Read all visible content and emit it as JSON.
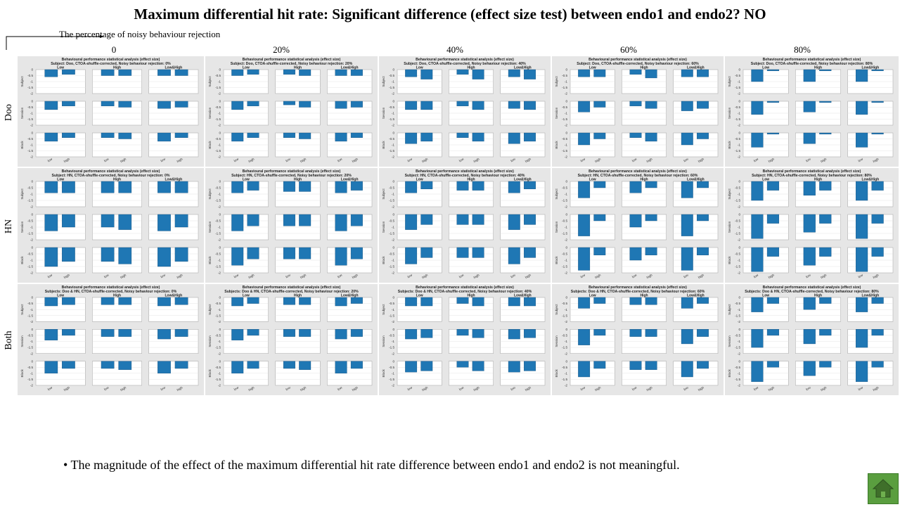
{
  "title": "Maximum differential hit rate: Significant difference (effect size test) between endo1 and endo2? NO",
  "axis_label": "The percentage of noisy  behaviour rejection",
  "columns": [
    "0",
    "20%",
    "40%",
    "60%",
    "80%"
  ],
  "rows": [
    "Doo",
    "HN",
    "Both"
  ],
  "bullet": "The magnitude  of  the  effect  of  the  maximum  differential  hit  rate  difference  between  endo1  and  endo2  is  not  meaningful.",
  "home_icon": "home-icon",
  "chart_data": {
    "type": "bar",
    "panel_title": "Behavioural performance statistical analysis (effect size)",
    "panel_subtitles": [
      [
        "Subject: Doo, CTOA-shuffle-corrected, Noisy behaviour rejection: 0%",
        "Subject: Doo, CTOA-shuffle-corrected, Noisy behaviour rejection: 20%",
        "Subject: Doo, CTOA-shuffle-corrected, Noisy behaviour rejection: 40%",
        "Subject: Doo, CTOA-shuffle-corrected, Noisy behaviour rejection: 60%",
        "Subject: Doo, CTOA-shuffle-corrected, Noisy behaviour rejection: 80%"
      ],
      [
        "Subject: HN, CTOA-shuffle-corrected, Noisy behaviour rejection: 0%",
        "Subject: HN, CTOA-shuffle-corrected, Noisy behaviour rejection: 20%",
        "Subject: HN, CTOA-shuffle-corrected, Noisy behaviour rejection: 40%",
        "Subject: HN, CTOA-shuffle-corrected, Noisy behaviour rejection: 60%",
        "Subject: HN, CTOA-shuffle-corrected, Noisy behaviour rejection: 80%"
      ],
      [
        "Subjects: Doo & HN, CTOA-shuffle-corrected, Noisy behaviour rejection: 0%",
        "Subjects: Doo & HN, CTOA-shuffle-corrected, Noisy behaviour rejection: 20%",
        "Subjects: Doo & HN, CTOA-shuffle-corrected, Noisy behaviour rejection: 40%",
        "Subjects: Doo & HN, CTOA-shuffle-corrected, Noisy behaviour rejection: 60%",
        "Subjects: Doo & HN, CTOA-shuffle-corrected, Noisy behaviour rejection: 80%"
      ]
    ],
    "subplot_columns": [
      "Low",
      "High",
      "Low&High"
    ],
    "subplot_rows": [
      "Subject",
      "Session",
      "Block"
    ],
    "categories": [
      "low",
      "high"
    ],
    "yticks": [
      "0",
      "-0.5",
      "-1",
      "-1.5",
      "-2"
    ],
    "ylim": [
      -2,
      0
    ],
    "bar_color": "#1f77b4",
    "values": [
      [
        [
          [
            [
              -0.6,
              -0.4
            ],
            [
              -0.5,
              -0.5
            ],
            [
              -0.5,
              -0.5
            ]
          ],
          [
            [
              -0.7,
              -0.4
            ],
            [
              -0.4,
              -0.5
            ],
            [
              -0.6,
              -0.5
            ]
          ],
          [
            [
              -0.7,
              -0.4
            ],
            [
              -0.4,
              -0.5
            ],
            [
              -0.7,
              -0.4
            ]
          ]
        ],
        [
          [
            [
              -0.5,
              -0.4
            ],
            [
              -0.4,
              -0.5
            ],
            [
              -0.5,
              -0.5
            ]
          ],
          [
            [
              -0.7,
              -0.4
            ],
            [
              -0.3,
              -0.5
            ],
            [
              -0.6,
              -0.5
            ]
          ],
          [
            [
              -0.7,
              -0.4
            ],
            [
              -0.4,
              -0.5
            ],
            [
              -0.7,
              -0.4
            ]
          ]
        ],
        [
          [
            [
              -0.6,
              -0.8
            ],
            [
              -0.4,
              -0.8
            ],
            [
              -0.6,
              -0.8
            ]
          ],
          [
            [
              -0.7,
              -0.7
            ],
            [
              -0.4,
              -0.7
            ],
            [
              -0.6,
              -0.7
            ]
          ],
          [
            [
              -0.9,
              -0.7
            ],
            [
              -0.4,
              -0.7
            ],
            [
              -0.9,
              -0.7
            ]
          ]
        ],
        [
          [
            [
              -0.6,
              -0.6
            ],
            [
              -0.4,
              -0.7
            ],
            [
              -0.6,
              -0.6
            ]
          ],
          [
            [
              -0.9,
              -0.5
            ],
            [
              -0.4,
              -0.6
            ],
            [
              -0.8,
              -0.6
            ]
          ],
          [
            [
              -1.0,
              -0.5
            ],
            [
              -0.4,
              -0.7
            ],
            [
              -1.0,
              -0.5
            ]
          ]
        ],
        [
          [
            [
              -1.0,
              -0.1
            ],
            [
              -1.0,
              -0.1
            ],
            [
              -1.0,
              -0.1
            ]
          ],
          [
            [
              -1.1,
              -0.1
            ],
            [
              -0.9,
              -0.1
            ],
            [
              -1.1,
              -0.1
            ]
          ],
          [
            [
              -1.2,
              -0.1
            ],
            [
              -0.9,
              -0.1
            ],
            [
              -1.2,
              -0.1
            ]
          ]
        ]
      ],
      [
        [
          [
            [
              -0.9,
              -0.9
            ],
            [
              -0.9,
              -0.9
            ],
            [
              -0.9,
              -0.9
            ]
          ],
          [
            [
              -1.3,
              -1.0
            ],
            [
              -1.0,
              -1.2
            ],
            [
              -1.3,
              -1.0
            ]
          ],
          [
            [
              -1.5,
              -1.1
            ],
            [
              -1.1,
              -1.3
            ],
            [
              -1.5,
              -1.1
            ]
          ]
        ],
        [
          [
            [
              -0.9,
              -0.7
            ],
            [
              -0.8,
              -0.8
            ],
            [
              -0.9,
              -0.7
            ]
          ],
          [
            [
              -1.3,
              -0.9
            ],
            [
              -0.9,
              -0.9
            ],
            [
              -1.3,
              -0.9
            ]
          ],
          [
            [
              -1.4,
              -0.9
            ],
            [
              -0.9,
              -0.9
            ],
            [
              -1.4,
              -0.9
            ]
          ]
        ],
        [
          [
            [
              -0.9,
              -0.6
            ],
            [
              -0.7,
              -0.7
            ],
            [
              -0.9,
              -0.6
            ]
          ],
          [
            [
              -1.2,
              -0.8
            ],
            [
              -0.8,
              -0.8
            ],
            [
              -1.2,
              -0.8
            ]
          ],
          [
            [
              -1.3,
              -0.8
            ],
            [
              -0.8,
              -0.8
            ],
            [
              -1.3,
              -0.8
            ]
          ]
        ],
        [
          [
            [
              -1.3,
              -0.5
            ],
            [
              -0.9,
              -0.5
            ],
            [
              -1.3,
              -0.5
            ]
          ],
          [
            [
              -1.7,
              -0.5
            ],
            [
              -1.0,
              -0.5
            ],
            [
              -1.7,
              -0.5
            ]
          ],
          [
            [
              -1.8,
              -0.6
            ],
            [
              -1.0,
              -0.6
            ],
            [
              -1.8,
              -0.6
            ]
          ]
        ],
        [
          [
            [
              -1.5,
              -0.7
            ],
            [
              -1.1,
              -0.7
            ],
            [
              -1.5,
              -0.7
            ]
          ],
          [
            [
              -1.9,
              -0.7
            ],
            [
              -1.4,
              -0.7
            ],
            [
              -1.9,
              -0.7
            ]
          ],
          [
            [
              -1.9,
              -0.7
            ],
            [
              -1.4,
              -0.7
            ],
            [
              -1.9,
              -0.7
            ]
          ]
        ]
      ],
      [
        [
          [
            [
              -0.7,
              -0.6
            ],
            [
              -0.6,
              -0.6
            ],
            [
              -0.7,
              -0.6
            ]
          ],
          [
            [
              -0.9,
              -0.5
            ],
            [
              -0.6,
              -0.6
            ],
            [
              -0.8,
              -0.6
            ]
          ],
          [
            [
              -1.0,
              -0.6
            ],
            [
              -0.6,
              -0.7
            ],
            [
              -1.0,
              -0.6
            ]
          ]
        ],
        [
          [
            [
              -0.7,
              -0.5
            ],
            [
              -0.6,
              -0.6
            ],
            [
              -0.7,
              -0.5
            ]
          ],
          [
            [
              -0.9,
              -0.5
            ],
            [
              -0.6,
              -0.6
            ],
            [
              -0.8,
              -0.6
            ]
          ],
          [
            [
              -1.0,
              -0.6
            ],
            [
              -0.6,
              -0.7
            ],
            [
              -1.0,
              -0.6
            ]
          ]
        ],
        [
          [
            [
              -0.7,
              -0.7
            ],
            [
              -0.5,
              -0.7
            ],
            [
              -0.7,
              -0.7
            ]
          ],
          [
            [
              -0.8,
              -0.7
            ],
            [
              -0.5,
              -0.7
            ],
            [
              -0.8,
              -0.7
            ]
          ],
          [
            [
              -0.9,
              -0.8
            ],
            [
              -0.5,
              -0.8
            ],
            [
              -0.9,
              -0.8
            ]
          ]
        ],
        [
          [
            [
              -0.9,
              -0.5
            ],
            [
              -0.6,
              -0.6
            ],
            [
              -0.9,
              -0.5
            ]
          ],
          [
            [
              -1.3,
              -0.5
            ],
            [
              -0.6,
              -0.6
            ],
            [
              -1.2,
              -0.6
            ]
          ],
          [
            [
              -1.3,
              -0.6
            ],
            [
              -0.7,
              -0.7
            ],
            [
              -1.3,
              -0.6
            ]
          ]
        ],
        [
          [
            [
              -1.2,
              -0.5
            ],
            [
              -1.0,
              -0.5
            ],
            [
              -1.2,
              -0.5
            ]
          ],
          [
            [
              -1.5,
              -0.5
            ],
            [
              -1.2,
              -0.5
            ],
            [
              -1.5,
              -0.5
            ]
          ],
          [
            [
              -1.7,
              -0.5
            ],
            [
              -1.2,
              -0.5
            ],
            [
              -1.7,
              -0.5
            ]
          ]
        ]
      ]
    ]
  }
}
